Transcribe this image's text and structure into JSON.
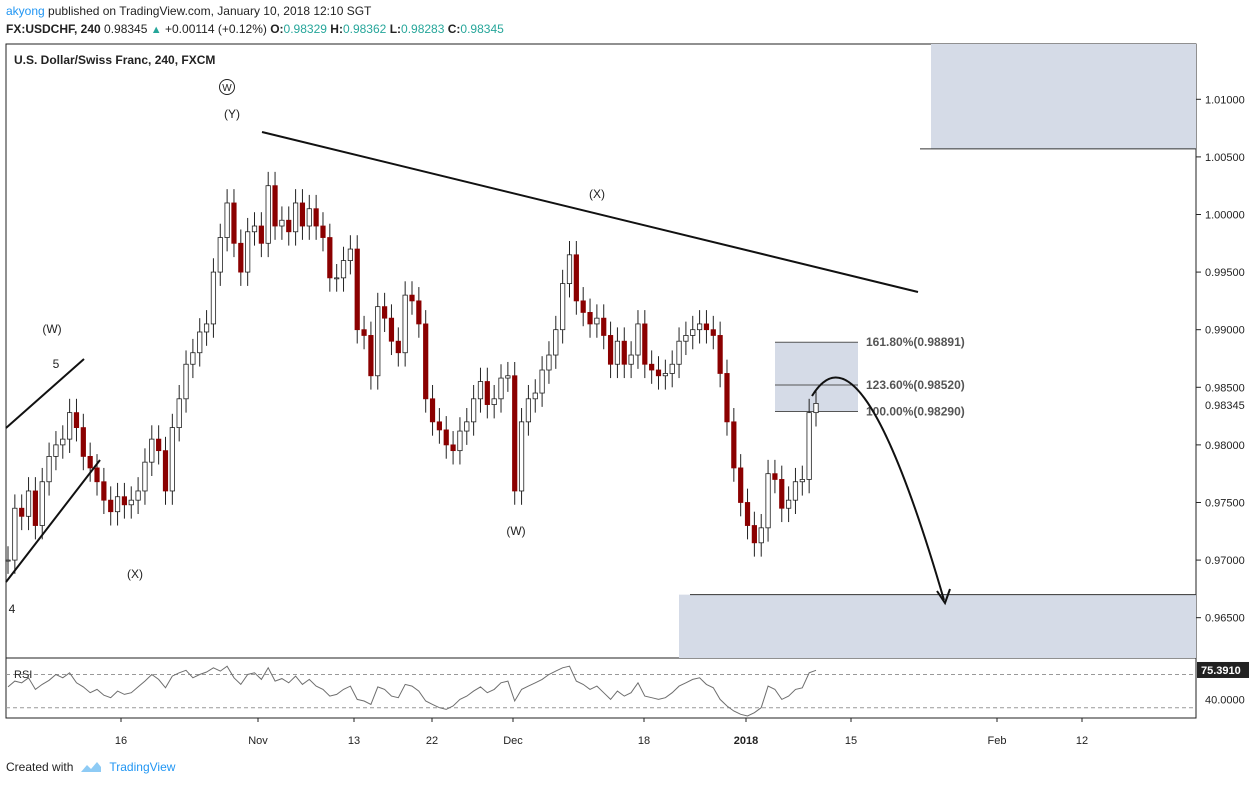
{
  "header": {
    "author": "akyong",
    "published_text": "published on TradingView.com, January 10, 2018 12:10 SGT",
    "symbol": "FX:USDCHF, 240",
    "last": "0.98345",
    "change": "+0.00114 (+0.12%)",
    "open_label": "O:",
    "open": "0.98329",
    "high_label": "H:",
    "high": "0.98362",
    "low_label": "L:",
    "low": "0.98283",
    "close_label": "C:",
    "close": "0.98345"
  },
  "chart_title": "U.S. Dollar/Swiss Franc, 240, FXCM",
  "footer": {
    "created_with": "Created with",
    "brand": "TradingView"
  },
  "colors": {
    "up": "#000000",
    "down": "#8b0000",
    "zone": "#d5dbe7",
    "price_tag": "#222222",
    "rsi_line": "#6e6e6e"
  },
  "chart_data": {
    "type": "line",
    "title": "U.S. Dollar/Swiss Franc, 240, FXCM",
    "ylim": [
      0.9615,
      1.0148
    ],
    "y_ticks": [
      "1.01000",
      "1.00500",
      "1.00000",
      "0.99500",
      "0.99000",
      "0.98500",
      "0.98000",
      "0.97500",
      "0.97000",
      "0.96500"
    ],
    "x_ticks": [
      "16",
      "Nov",
      "13",
      "22",
      "Dec",
      "18",
      "2018",
      "15",
      "Feb",
      "12"
    ],
    "current_price": "0.98345",
    "series": [
      {
        "values": [
          0.97,
          0.9745,
          0.9738,
          0.976,
          0.973,
          0.9768,
          0.979,
          0.98,
          0.9805,
          0.9828,
          0.9815,
          0.979,
          0.978,
          0.9768,
          0.9752,
          0.9742,
          0.9755,
          0.9748,
          0.9752,
          0.976,
          0.9785,
          0.9805,
          0.9795,
          0.976,
          0.9815,
          0.984,
          0.987,
          0.988,
          0.9898,
          0.9905,
          0.995,
          0.998,
          1.001,
          0.9975,
          0.995,
          0.9985,
          0.999,
          0.9975,
          1.0025,
          0.999,
          0.9995,
          0.9985,
          1.001,
          0.999,
          1.0005,
          0.999,
          0.998,
          0.9945,
          0.9945,
          0.996,
          0.997,
          0.99,
          0.9895,
          0.986,
          0.992,
          0.991,
          0.989,
          0.988,
          0.993,
          0.9925,
          0.9905,
          0.984,
          0.982,
          0.9813,
          0.98,
          0.9795,
          0.9812,
          0.982,
          0.984,
          0.9855,
          0.9835,
          0.984,
          0.9858,
          0.986,
          0.976,
          0.982,
          0.984,
          0.9845,
          0.9865,
          0.9878,
          0.99,
          0.994,
          0.9965,
          0.9925,
          0.9915,
          0.9905,
          0.991,
          0.9895,
          0.987,
          0.989,
          0.987,
          0.9878,
          0.9905,
          0.987,
          0.9865,
          0.986,
          0.9862,
          0.987,
          0.989,
          0.9895,
          0.99,
          0.9905,
          0.99,
          0.9895,
          0.9862,
          0.982,
          0.978,
          0.975,
          0.973,
          0.9715,
          0.9728,
          0.9775,
          0.977,
          0.9745,
          0.9752,
          0.9768,
          0.977,
          0.9828,
          0.9836
        ],
        "high_note": "Daily path of the 240-minute candles, read off the price axis"
      }
    ],
    "annotations": [
      {
        "text": "(W)",
        "x": 0,
        "y": 0.9898
      },
      {
        "text": "5",
        "x": 0,
        "y": 0.985
      },
      {
        "text": "4",
        "x": 0,
        "y": 0.966
      },
      {
        "text": "(X)",
        "x": 0,
        "y": 0.969
      },
      {
        "text": "W",
        "x": 0,
        "y": 1.008
      },
      {
        "text": "(Y)",
        "x": 0,
        "y": 1.006
      },
      {
        "text": "(X)",
        "x": 0,
        "y": 0.999
      },
      {
        "text": "(W)",
        "x": 0,
        "y": 0.972
      }
    ],
    "fibonacci": [
      {
        "label": "161.80%(0.98891)",
        "value": 0.98891
      },
      {
        "label": "123.60%(0.98520)",
        "value": 0.9852
      },
      {
        "label": "100.00%(0.98290)",
        "value": 0.9829
      }
    ],
    "zones": [
      {
        "from": 1.0057,
        "to": 1.0148
      },
      {
        "from": 0.9615,
        "to": 0.967
      }
    ],
    "trendline": {
      "from": 1.004,
      "to": 0.9912
    },
    "rsi": {
      "label": "RSI",
      "value": "75.3910",
      "tick": "40.0000",
      "values": [
        55,
        62,
        60,
        66,
        52,
        58,
        63,
        70,
        66,
        72,
        60,
        55,
        48,
        52,
        45,
        42,
        50,
        46,
        48,
        55,
        62,
        70,
        64,
        54,
        68,
        72,
        75,
        66,
        70,
        73,
        78,
        74,
        80,
        66,
        58,
        70,
        72,
        64,
        78,
        62,
        65,
        60,
        68,
        58,
        64,
        56,
        52,
        44,
        46,
        52,
        56,
        40,
        38,
        34,
        55,
        52,
        44,
        42,
        58,
        56,
        50,
        38,
        34,
        30,
        28,
        32,
        40,
        44,
        50,
        55,
        48,
        52,
        60,
        62,
        38,
        52,
        56,
        60,
        64,
        70,
        74,
        78,
        80,
        62,
        58,
        52,
        56,
        48,
        40,
        50,
        44,
        48,
        60,
        44,
        42,
        40,
        42,
        48,
        56,
        60,
        64,
        66,
        58,
        54,
        40,
        32,
        26,
        22,
        20,
        24,
        30,
        56,
        52,
        40,
        44,
        52,
        54,
        72,
        75
      ]
    }
  }
}
